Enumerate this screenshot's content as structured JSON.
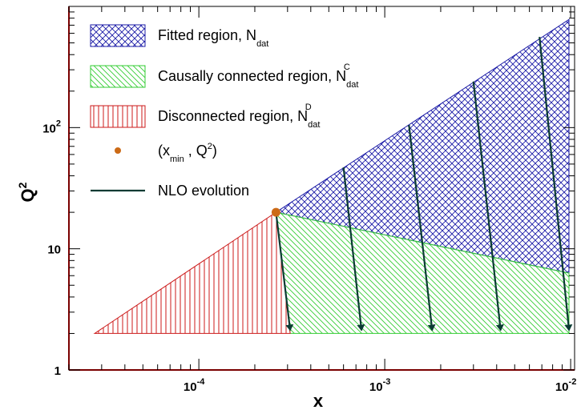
{
  "chart_data": {
    "type": "area",
    "xlabel": "x",
    "ylabel": "Q",
    "ylabel_sup": "2",
    "xscale": "log",
    "yscale": "log",
    "xlim": [
      2e-05,
      0.0105
    ],
    "ylim": [
      1,
      1000
    ],
    "x_ticks": [
      {
        "value": 0.0001,
        "base": "10",
        "exp": "-4"
      },
      {
        "value": 0.001,
        "base": "10",
        "exp": "-3"
      },
      {
        "value": 0.01,
        "base": "10",
        "exp": "-2"
      }
    ],
    "y_ticks": [
      {
        "value": 1,
        "label": "1"
      },
      {
        "value": 10,
        "label": "10"
      },
      {
        "value": 100,
        "base": "10",
        "exp": "2"
      }
    ],
    "colors": {
      "fitted": "#1a1aa6",
      "causal": "#33cc33",
      "disconnected": "#cc1a1a",
      "point": "#cc6a16",
      "evolution": "#0b3b33",
      "frame": "#7a0000"
    },
    "regions": [
      {
        "name": "fitted",
        "polygon": [
          [
            0.00026,
            20
          ],
          [
            0.0098,
            780
          ],
          [
            0.0098,
            6.3
          ]
        ]
      },
      {
        "name": "causal",
        "polygon": [
          [
            0.00026,
            20
          ],
          [
            0.0098,
            6.3
          ],
          [
            0.0098,
            2
          ],
          [
            0.00031,
            2
          ]
        ]
      },
      {
        "name": "disconnected",
        "polygon": [
          [
            2.75e-05,
            2
          ],
          [
            0.00026,
            20
          ],
          [
            0.00031,
            2
          ]
        ]
      }
    ],
    "point": {
      "x": 0.00026,
      "y": 20
    },
    "evolution_lines": [
      {
        "from": [
          0.00026,
          20
        ],
        "to": [
          0.00031,
          2
        ]
      },
      {
        "from": [
          0.0006,
          47
        ],
        "to": [
          0.00075,
          2
        ]
      },
      {
        "from": [
          0.00135,
          105
        ],
        "to": [
          0.0018,
          2
        ]
      },
      {
        "from": [
          0.003,
          240
        ],
        "to": [
          0.0042,
          2
        ]
      },
      {
        "from": [
          0.0068,
          560
        ],
        "to": [
          0.0098,
          2
        ]
      }
    ],
    "legend": {
      "placement": "top-left",
      "entries": [
        {
          "key": "fitted",
          "text": "Fitted region, N",
          "sub": "dat",
          "sup": ""
        },
        {
          "key": "causal",
          "text": "Causally connected region, N",
          "sub": "dat",
          "sup": "C"
        },
        {
          "key": "disconnected",
          "text": "Disconnected region, N",
          "sub": "dat",
          "sup": "D"
        },
        {
          "key": "point",
          "text": "(x",
          "sub": "min",
          "tail_pre": " , Q",
          "tail_sup": "2",
          "tail_post": ")"
        },
        {
          "key": "evolution",
          "text": "NLO evolution"
        }
      ]
    },
    "grid": false
  }
}
